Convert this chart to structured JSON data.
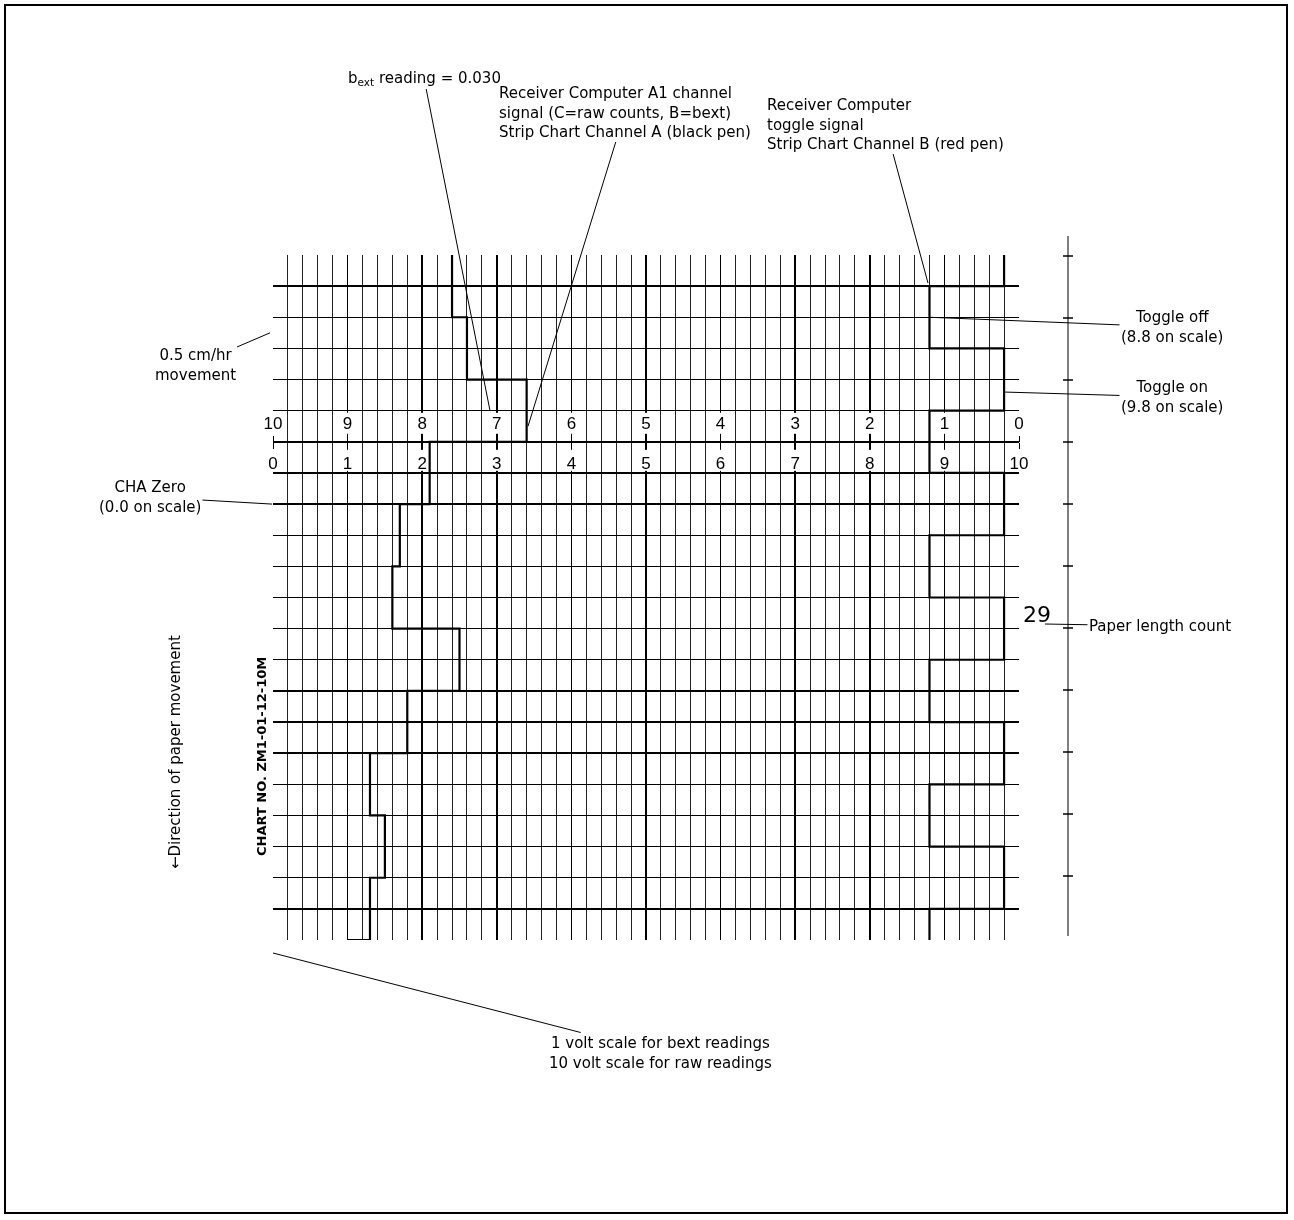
{
  "chart_data": {
    "type": "step",
    "orientation": "horizontal",
    "categories": [
      null,
      null,
      null,
      null,
      null,
      null,
      null,
      null,
      null,
      null,
      null,
      null,
      null,
      null,
      null,
      null,
      null,
      null,
      null,
      null,
      null,
      null,
      null
    ],
    "series": [
      {
        "color": "#000000",
        "values": [
          2.4,
          2.4,
          2.6,
          2.6,
          3.4,
          3.4,
          2.1,
          2.1,
          1.7,
          1.7,
          1.6,
          1.6,
          2.5,
          2.5,
          1.8,
          1.8,
          1.3,
          1.3,
          1.5,
          1.5,
          1.3,
          1.3,
          1.0
        ]
      },
      {
        "color": "#000000",
        "values": [
          9.8,
          8.8,
          8.8,
          9.8,
          9.8,
          8.8,
          8.8,
          9.8,
          9.8,
          8.8,
          8.8,
          9.8,
          9.8,
          8.8,
          8.8,
          9.8,
          9.8,
          8.8,
          8.8,
          9.8,
          9.8,
          8.8,
          8.8
        ]
      }
    ],
    "xlim": [
      0,
      10
    ],
    "xticks": [
      0,
      1,
      2,
      3,
      4,
      5,
      6,
      7,
      8,
      9,
      10
    ],
    "x2lim": [
      10,
      0
    ],
    "x2ticks": [
      10,
      9,
      8,
      7,
      6,
      5,
      4,
      3,
      2,
      1,
      0
    ],
    "grid": true,
    "marker": "none",
    "line_style": "solid",
    "annotations": [
      "Receiver Computer A1 channel\nsignal (C=raw counts, B=bext)\nStrip Chart Channel A (black pen)",
      "b$_{ext}$ reading = 0.030",
      "Receiver Computer\ntoggle signal\nStrip Chart Channel B (red pen)",
      "0.5 cm/hr\nmovement",
      "Toggle off\n(8.8 on scale)",
      "Toggle on\n(9.8 on scale)",
      "CHA Zero\n(0.0 on scale)",
      "29",
      "Paper length count",
      "←Direction of paper movement",
      "CHART NO. ZM1-01-12-10M",
      "1 volt scale for bext readings\n10 volt scale for raw readings"
    ]
  }
}
